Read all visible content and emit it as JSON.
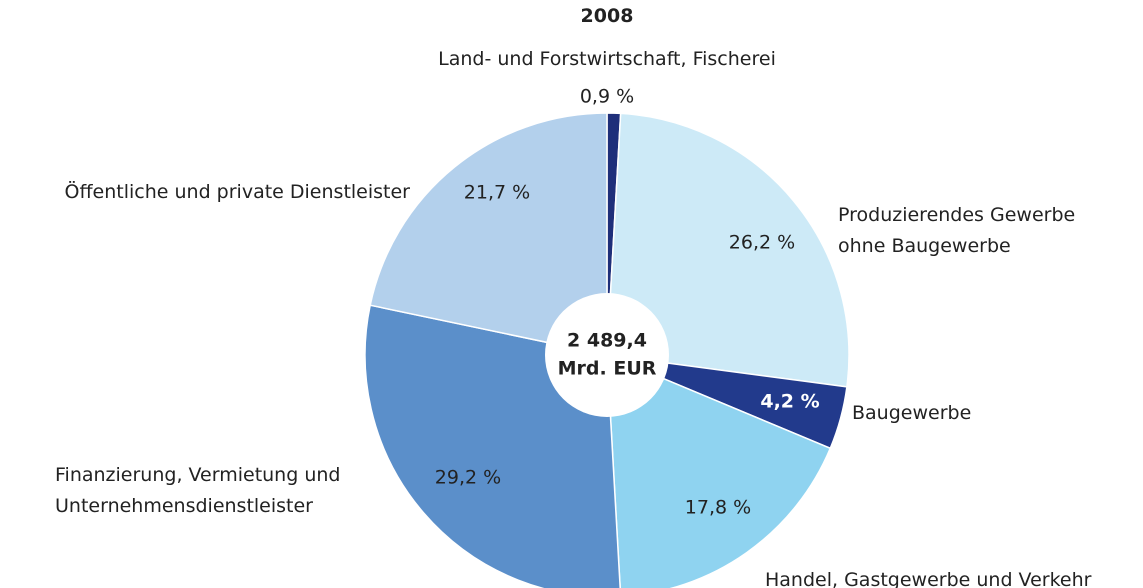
{
  "chart_data": {
    "type": "pie",
    "title": "2008",
    "categories": [
      "Land- und Forstwirtschaft, Fischerei",
      "Produzierendes Gewerbe ohne Baugewerbe",
      "Baugewerbe",
      "Handel, Gastgewerbe und Verkehr",
      "Finanzierung, Vermietung und Unternehmensdienstleister",
      "Öffentliche und private Dienstleister"
    ],
    "values": [
      0.9,
      26.2,
      4.2,
      17.8,
      29.2,
      21.7
    ],
    "value_labels": [
      "0,9 %",
      "26,2 %",
      "4,2 %",
      "17,8 %",
      "29,2 %",
      "21,7 %"
    ],
    "colors": [
      "#1f2f7a",
      "#cdeaf7",
      "#223a8c",
      "#8fd3f0",
      "#5b8fca",
      "#b3d0ec"
    ],
    "center_label": [
      "2 489,4",
      "Mrd. EUR"
    ]
  }
}
